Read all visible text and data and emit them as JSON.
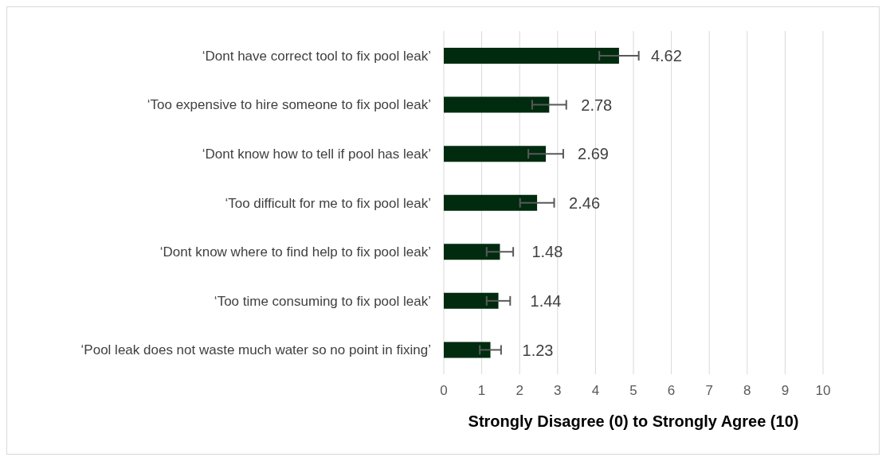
{
  "chart_data": {
    "type": "bar",
    "orientation": "horizontal",
    "xlabel": "Strongly Disagree (0) to Strongly Agree (10)",
    "categories": [
      "‘Dont have correct tool to fix pool leak’",
      "‘Too expensive to hire someone to fix pool leak’",
      "‘Dont know how to tell if pool has leak’",
      "‘Too difficult for me to fix pool leak’",
      "‘Dont know where to find help to fix pool leak’",
      "‘Too time consuming to fix pool leak’",
      "‘Pool leak does not waste much water so no point in fixing’"
    ],
    "values": [
      4.62,
      2.78,
      2.69,
      2.46,
      1.48,
      1.44,
      1.23
    ],
    "errors": [
      0.52,
      0.45,
      0.46,
      0.45,
      0.35,
      0.31,
      0.28
    ],
    "color": "#002b0f",
    "xlim": [
      0,
      10
    ],
    "xticks": [
      0,
      1,
      2,
      3,
      4,
      5,
      6,
      7,
      8,
      9,
      10
    ],
    "grid": "x",
    "data_labels": true,
    "legend": false
  }
}
